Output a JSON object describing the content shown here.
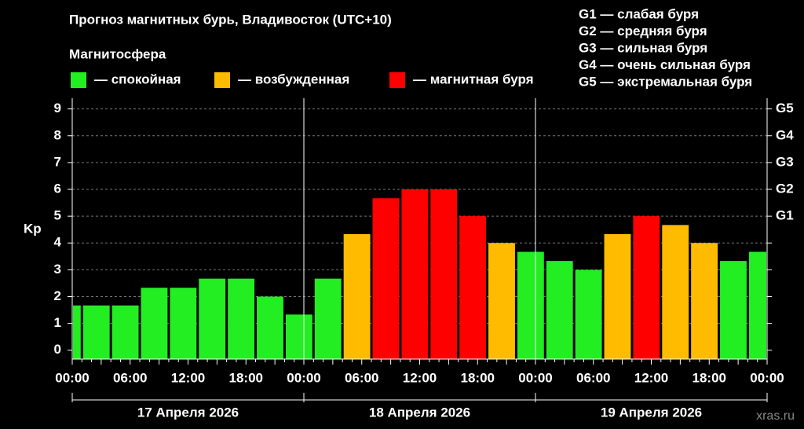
{
  "chart_data": {
    "type": "bar",
    "title": "Прогноз магнитных бурь, Владивосток (UTC+10)",
    "legend_title": "Магнитосфера",
    "legend": [
      {
        "name": "— спокойная",
        "color": "#22ee22"
      },
      {
        "name": "— возбужденная",
        "color": "#ffbb00"
      },
      {
        "name": "— магнитная буря",
        "color": "#ff0000"
      }
    ],
    "storm_levels": [
      "G1 — слабая буря",
      "G2 — средняя буря",
      "G3 — сильная буря",
      "G4 — очень сильная буря",
      "G5 — экстремальная буря"
    ],
    "ylabel": "Kp",
    "values": [
      1.67,
      1.67,
      1.67,
      2.33,
      2.33,
      2.67,
      2.67,
      2,
      1.33,
      2.67,
      4.33,
      5.67,
      6,
      6,
      5,
      4,
      3.67,
      3.33,
      3,
      4.33,
      5,
      4.67,
      4,
      3.33,
      3.67
    ],
    "colors": [
      "#22ee22",
      "#22ee22",
      "#22ee22",
      "#22ee22",
      "#22ee22",
      "#22ee22",
      "#22ee22",
      "#22ee22",
      "#22ee22",
      "#22ee22",
      "#ffbb00",
      "#ff0000",
      "#ff0000",
      "#ff0000",
      "#ff0000",
      "#ffbb00",
      "#22ee22",
      "#22ee22",
      "#22ee22",
      "#ffbb00",
      "#ff0000",
      "#ffbb00",
      "#ffbb00",
      "#22ee22",
      "#22ee22"
    ],
    "x_labels": [
      "00:00",
      "06:00",
      "12:00",
      "18:00",
      "00:00",
      "06:00",
      "12:00",
      "18:00",
      "00:00",
      "06:00",
      "12:00",
      "18:00",
      "00:00"
    ],
    "day_labels": [
      "17 Апреля 2026",
      "18 Апреля 2026",
      "19 Апреля 2026"
    ],
    "ylim": [
      -0.33,
      9.4
    ],
    "yticks": [
      0,
      1,
      2,
      3,
      4,
      5,
      6,
      7,
      8,
      9
    ],
    "y2lim": [
      -0.33,
      9.4
    ],
    "y2ticks": [
      {
        "value": 5,
        "label": "G1"
      },
      {
        "value": 6,
        "label": "G2"
      },
      {
        "value": 7,
        "label": "G3"
      },
      {
        "value": 8,
        "label": "G4"
      },
      {
        "value": 9,
        "label": "G5"
      }
    ],
    "grid": true,
    "source": "xras.ru"
  }
}
